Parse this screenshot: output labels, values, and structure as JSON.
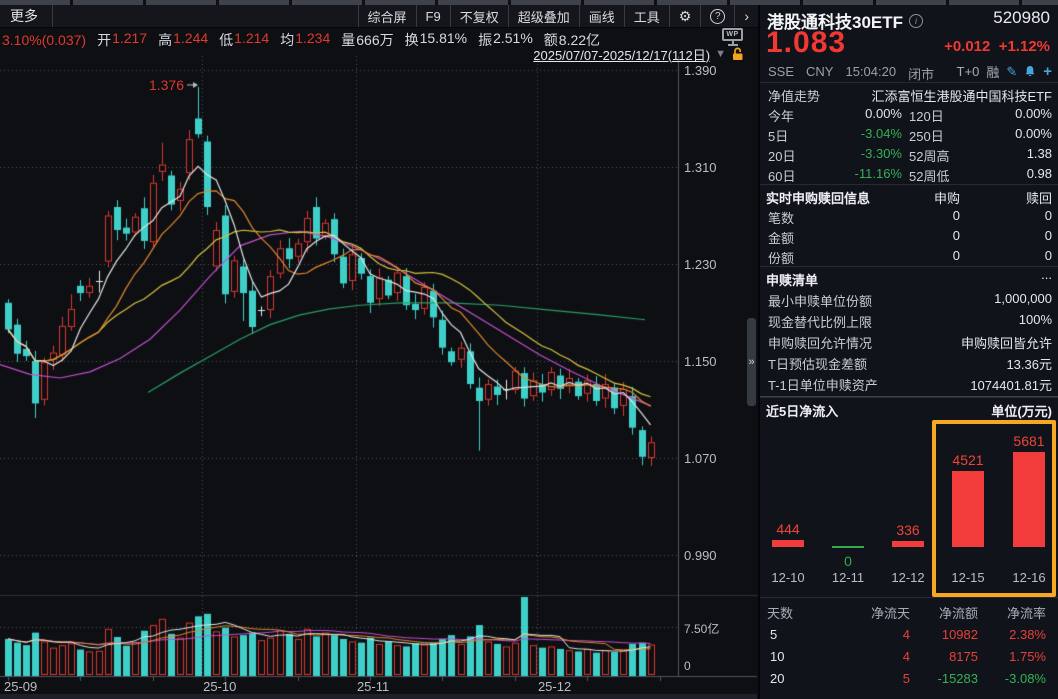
{
  "top": {
    "more": "更多",
    "buttons": [
      "综合屏",
      "F9",
      "不复权",
      "超级叠加",
      "画线",
      "工具"
    ],
    "gear_icon": "⚙",
    "help_icon": "?",
    "chevron_icon": "›",
    "wp_icon": "WP",
    "stats": [
      {
        "t": "3.10%(0.037)",
        "c": "red"
      },
      {
        "t": "开",
        "c": "lbl"
      },
      {
        "t": "1.217",
        "c": "red"
      },
      {
        "t": "高",
        "c": "lbl"
      },
      {
        "t": "1.244",
        "c": "red"
      },
      {
        "t": "低",
        "c": "lbl"
      },
      {
        "t": "1.214",
        "c": "red"
      },
      {
        "t": "均",
        "c": "lbl"
      },
      {
        "t": "1.234",
        "c": "red"
      },
      {
        "t": "量",
        "c": "lbl"
      },
      {
        "t": "666万",
        "c": "wht"
      },
      {
        "t": "换",
        "c": "lbl"
      },
      {
        "t": "15.81%",
        "c": "wht"
      },
      {
        "t": "振",
        "c": "lbl"
      },
      {
        "t": "2.51%",
        "c": "wht"
      },
      {
        "t": "额",
        "c": "lbl"
      },
      {
        "t": "8.22亿",
        "c": "wht"
      }
    ],
    "date_range": "2025/07/07-2025/12/17(112日)",
    "dropdown_icon": "▼"
  },
  "chart_data": {
    "type": "candlestick",
    "y_ticks": [
      "1.390",
      "1.310",
      "1.230",
      "1.150",
      "1.070",
      "0.990"
    ],
    "y_tick_values": [
      1.39,
      1.31,
      1.23,
      1.15,
      1.07,
      0.99
    ],
    "x_ticks": [
      "25-09",
      "25-10",
      "25-11",
      "25-12"
    ],
    "month_start_indices": [
      0,
      22,
      39,
      59
    ],
    "annotation": {
      "text": "1.376",
      "index": 21,
      "price": 1.376
    },
    "volume_ticks": [
      "7.50亿",
      "0"
    ],
    "candles": [
      [
        1.198,
        1.176
      ],
      [
        1.18,
        1.156
      ],
      [
        1.16,
        1.154
      ],
      [
        1.15,
        1.115
      ],
      [
        1.118,
        1.149
      ],
      [
        1.151,
        1.157
      ],
      [
        1.155,
        1.179
      ],
      [
        1.178,
        1.193
      ],
      [
        1.212,
        1.206
      ],
      [
        1.206,
        1.212
      ],
      [
        1.214,
        1.216
      ],
      [
        1.232,
        1.27
      ],
      [
        1.277,
        1.258
      ],
      [
        1.26,
        1.255
      ],
      [
        1.256,
        1.269
      ],
      [
        1.276,
        1.249
      ],
      [
        1.248,
        1.297
      ],
      [
        1.306,
        1.312
      ],
      [
        1.303,
        1.279
      ],
      [
        1.282,
        1.292
      ],
      [
        1.305,
        1.333
      ],
      [
        1.35,
        1.337
      ],
      [
        1.331,
        1.277
      ],
      [
        1.228,
        1.258
      ],
      [
        1.27,
        1.205
      ],
      [
        1.207,
        1.233
      ],
      [
        1.228,
        1.206
      ],
      [
        1.208,
        1.178
      ],
      [
        1.19,
        1.192
      ],
      [
        1.192,
        1.22
      ],
      [
        1.222,
        1.243
      ],
      [
        1.243,
        1.234
      ],
      [
        1.236,
        1.247
      ],
      [
        1.248,
        1.268
      ],
      [
        1.277,
        1.251
      ],
      [
        1.253,
        1.264
      ],
      [
        1.267,
        1.238
      ],
      [
        1.236,
        1.214
      ],
      [
        1.216,
        1.238
      ],
      [
        1.235,
        1.222
      ],
      [
        1.22,
        1.198
      ],
      [
        1.201,
        1.219
      ],
      [
        1.217,
        1.204
      ],
      [
        1.206,
        1.223
      ],
      [
        1.22,
        1.196
      ],
      [
        1.197,
        1.192
      ],
      [
        1.193,
        1.211
      ],
      [
        1.208,
        1.186
      ],
      [
        1.184,
        1.161
      ],
      [
        1.158,
        1.149
      ],
      [
        1.151,
        1.161
      ],
      [
        1.158,
        1.131
      ],
      [
        1.128,
        1.117
      ],
      [
        1.118,
        1.131
      ],
      [
        1.129,
        1.122
      ],
      [
        1.124,
        1.127
      ],
      [
        1.126,
        1.142
      ],
      [
        1.14,
        1.119
      ],
      [
        1.121,
        1.134
      ],
      [
        1.131,
        1.124
      ],
      [
        1.126,
        1.141
      ],
      [
        1.138,
        1.127
      ],
      [
        1.129,
        1.136
      ],
      [
        1.133,
        1.121
      ],
      [
        1.123,
        1.134
      ],
      [
        1.131,
        1.117
      ],
      [
        1.119,
        1.131
      ],
      [
        1.128,
        1.111
      ],
      [
        1.113,
        1.127
      ],
      [
        1.121,
        1.095
      ],
      [
        1.093,
        1.071
      ],
      [
        1.07,
        1.083
      ]
    ],
    "wick_overrides": {
      "3": {
        "lo": 1.103
      },
      "7": {
        "hi": 1.205
      },
      "15": {
        "hi": 1.285
      },
      "17": {
        "hi": 1.33
      },
      "21": {
        "hi": 1.376
      },
      "26": {
        "lo": 1.183
      },
      "34": {
        "hi": 1.285
      },
      "52": {
        "lo": 1.076
      },
      "70": {
        "lo": 1.064
      }
    },
    "white_doji": [
      10,
      28,
      55
    ],
    "volumes": [
      5.6,
      5.0,
      4.6,
      6.6,
      5.2,
      4.2,
      4.6,
      4.9,
      3.9,
      3.6,
      3.7,
      7.2,
      5.9,
      4.5,
      5.1,
      6.9,
      7.8,
      8.8,
      6.4,
      5.8,
      8.2,
      9.2,
      9.6,
      6.8,
      7.4,
      6.0,
      6.2,
      6.6,
      5.4,
      5.8,
      7.0,
      6.4,
      5.6,
      7.2,
      6.0,
      6.6,
      6.2,
      5.6,
      5.2,
      5.0,
      5.8,
      4.8,
      5.2,
      4.6,
      4.4,
      4.9,
      4.7,
      5.0,
      5.6,
      6.2,
      4.8,
      6.0,
      7.8,
      5.2,
      4.8,
      4.4,
      5.0,
      12.6,
      4.6,
      4.2,
      4.4,
      4.0,
      3.8,
      3.6,
      4.0,
      3.4,
      3.8,
      3.5,
      3.7,
      4.8,
      5.0,
      4.7
    ],
    "magenta_keypoints": [
      [
        0,
        1.147
      ],
      [
        30,
        1.139
      ],
      [
        60,
        1.136
      ],
      [
        90,
        1.141
      ],
      [
        120,
        1.152
      ],
      [
        150,
        1.168
      ],
      [
        180,
        1.192
      ],
      [
        210,
        1.22
      ],
      [
        240,
        1.245
      ],
      [
        270,
        1.254
      ],
      [
        300,
        1.257
      ],
      [
        330,
        1.252
      ],
      [
        360,
        1.242
      ],
      [
        390,
        1.23
      ],
      [
        420,
        1.215
      ],
      [
        450,
        1.2
      ],
      [
        480,
        1.185
      ],
      [
        510,
        1.17
      ],
      [
        540,
        1.155
      ],
      [
        570,
        1.142
      ],
      [
        600,
        1.13
      ],
      [
        630,
        1.12
      ],
      [
        651,
        1.113
      ]
    ],
    "green_keypoints": [
      [
        148,
        1.124
      ],
      [
        180,
        1.14
      ],
      [
        210,
        1.154
      ],
      [
        240,
        1.168
      ],
      [
        270,
        1.18
      ],
      [
        300,
        1.188
      ],
      [
        330,
        1.193
      ],
      [
        360,
        1.196
      ],
      [
        400,
        1.198
      ],
      [
        450,
        1.198
      ],
      [
        500,
        1.196
      ],
      [
        550,
        1.192
      ],
      [
        600,
        1.188
      ],
      [
        645,
        1.184
      ]
    ],
    "colors": {
      "up": "#d9382e",
      "down": "#3ed0c8",
      "ma5": "#e3e3e3",
      "ma10": "#e0882a",
      "ma20": "#d4c23c",
      "ma_slow": "#c44fd0",
      "ma_long": "#2b9e64",
      "grid": "#565b63",
      "axis": "#50545b"
    }
  },
  "panel": {
    "handle": "»",
    "header": {
      "name": "港股通科技30ETF",
      "code": "520980",
      "price": "1.083",
      "change": "+0.012",
      "change_pct": "+1.12%",
      "exchange": "SSE",
      "currency": "CNY",
      "time": "15:04:20",
      "status": "闭市",
      "trade_mode": "T+0",
      "margin": "融"
    },
    "nav": {
      "title": "净值走势",
      "fund_name": "汇添富恒生港股通中国科技ETF",
      "rows": [
        {
          "l1": "今年",
          "v1": "0.00%",
          "c1": "wht",
          "l2": "120日",
          "v2": "0.00%",
          "c2": "wht"
        },
        {
          "l1": "5日",
          "v1": "-3.04%",
          "c1": "grn",
          "l2": "250日",
          "v2": "0.00%",
          "c2": "wht"
        },
        {
          "l1": "20日",
          "v1": "-3.30%",
          "c1": "grn",
          "l2": "52周高",
          "v2": "1.38",
          "c2": "wht"
        },
        {
          "l1": "60日",
          "v1": "-11.16%",
          "c1": "grn",
          "l2": "52周低",
          "v2": "0.98",
          "c2": "wht"
        }
      ]
    },
    "realtime": {
      "title": "实时申购赎回信息",
      "col1": "申购",
      "col2": "赎回",
      "rows": [
        {
          "l": "笔数",
          "v1": "0",
          "v2": "0"
        },
        {
          "l": "金额",
          "v1": "0",
          "v2": "0"
        },
        {
          "l": "份额",
          "v1": "0",
          "v2": "0"
        }
      ]
    },
    "list": {
      "title": "申赎清单",
      "more": "...",
      "rows": [
        {
          "l": "最小申赎单位份额",
          "v": "1,000,000"
        },
        {
          "l": "现金替代比例上限",
          "v": "100%"
        },
        {
          "l": "申购赎回允许情况",
          "v": "申购赎回皆允许"
        },
        {
          "l": "T日预估现金差额",
          "v": "13.36元"
        },
        {
          "l": "T-1日单位申赎资产",
          "v": "1074401.81元"
        }
      ]
    },
    "flow": {
      "title": "近5日净流入",
      "unit": "单位(万元)",
      "bars": [
        {
          "date": "12-10",
          "value": 444
        },
        {
          "date": "12-11",
          "value": 0
        },
        {
          "date": "12-12",
          "value": 336
        },
        {
          "date": "12-15",
          "value": 4521
        },
        {
          "date": "12-16",
          "value": 5681
        }
      ],
      "highlight_color": "#f7a823"
    },
    "table": {
      "headers": [
        "天数",
        "净流天",
        "净流额",
        "净流率"
      ],
      "rows": [
        [
          "5",
          "4",
          "10982",
          "2.38%"
        ],
        [
          "10",
          "4",
          "8175",
          "1.75%"
        ],
        [
          "20",
          "5",
          "-15283",
          "-3.08%"
        ]
      ]
    }
  }
}
